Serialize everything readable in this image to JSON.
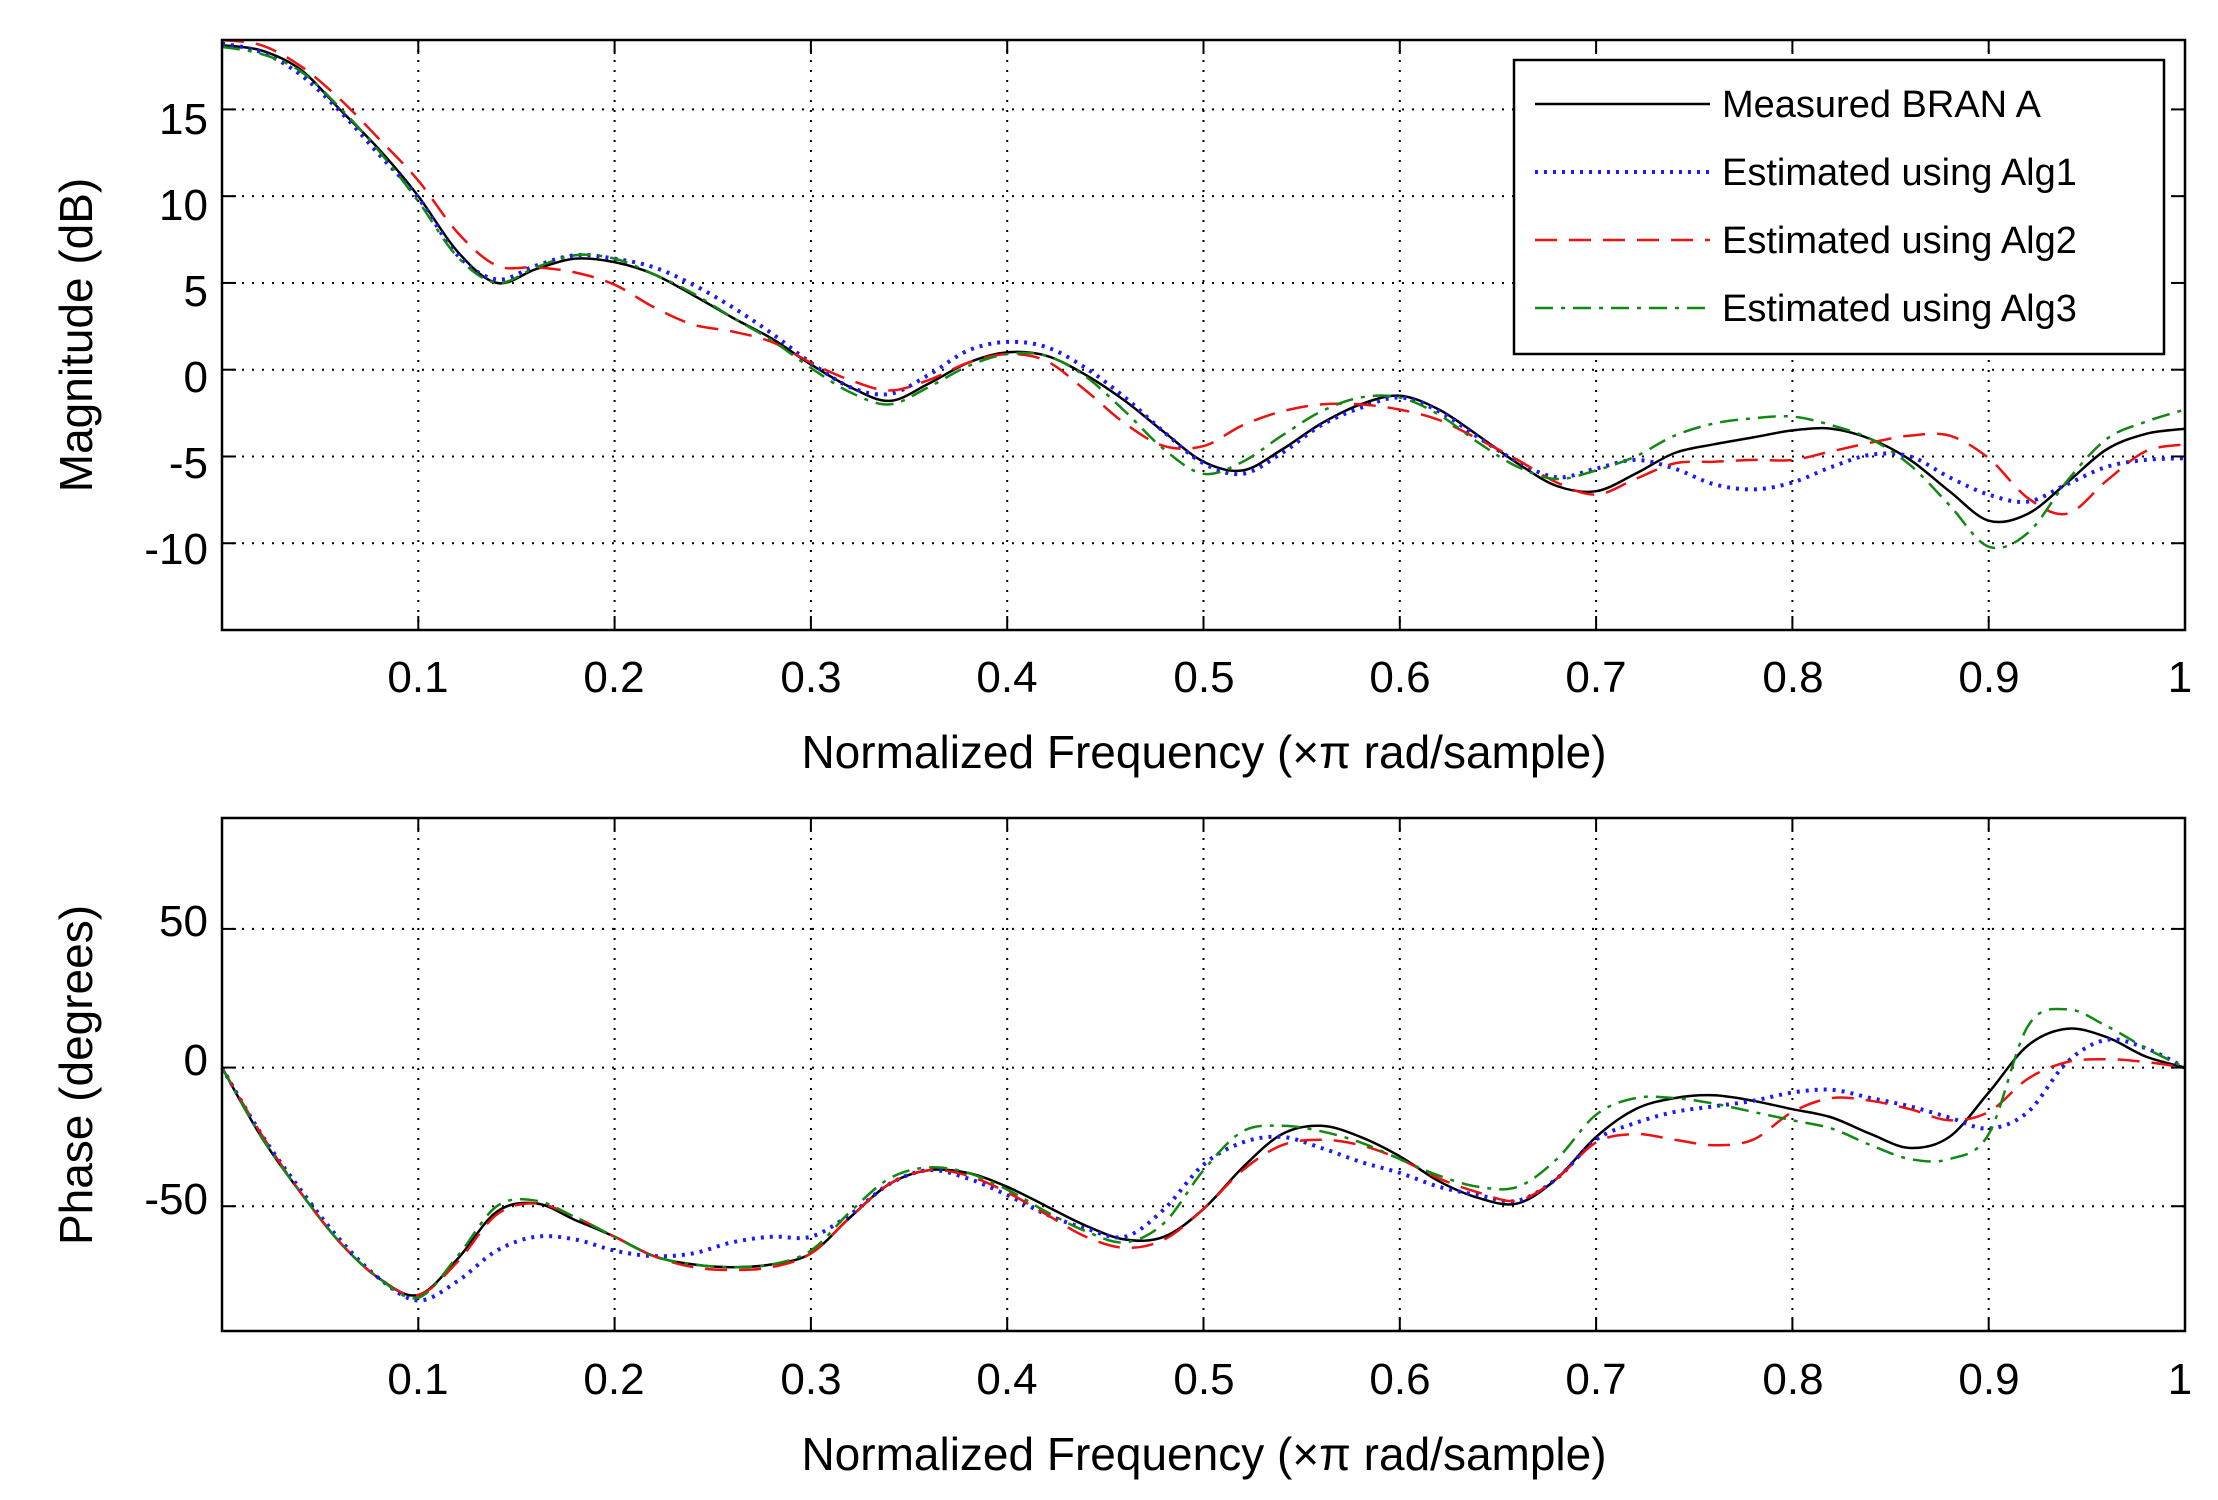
{
  "chart_data": [
    {
      "type": "line",
      "xlabel": "Normalized Frequency  (×π rad/sample)",
      "ylabel": "Magnitude (dB)",
      "xlim": [
        0.0,
        1.0
      ],
      "ylim": [
        -15,
        19
      ],
      "xticks": [
        "0.1",
        "0.2",
        "0.3",
        "0.4",
        "0.5",
        "0.6",
        "0.7",
        "0.8",
        "0.9",
        "1"
      ],
      "xtick_values": [
        0.1,
        0.2,
        0.3,
        0.4,
        0.5,
        0.6,
        0.7,
        0.8,
        0.9,
        1.0
      ],
      "yticks": [
        "15",
        "10",
        "5",
        "0",
        "-5",
        "-10"
      ],
      "ytick_values": [
        15,
        10,
        5,
        0,
        -5,
        -10
      ],
      "grid": true,
      "legend_position": "top-right",
      "series": [
        {
          "name": "Measured BRAN A",
          "color": "#000000",
          "dash": "solid",
          "x": [
            0.0,
            0.02,
            0.04,
            0.06,
            0.08,
            0.1,
            0.12,
            0.14,
            0.16,
            0.18,
            0.2,
            0.22,
            0.24,
            0.26,
            0.28,
            0.3,
            0.32,
            0.34,
            0.36,
            0.38,
            0.4,
            0.42,
            0.44,
            0.46,
            0.48,
            0.5,
            0.52,
            0.54,
            0.56,
            0.58,
            0.6,
            0.62,
            0.64,
            0.66,
            0.68,
            0.7,
            0.72,
            0.74,
            0.76,
            0.78,
            0.8,
            0.82,
            0.84,
            0.86,
            0.88,
            0.9,
            0.92,
            0.94,
            0.96,
            0.98,
            1.0
          ],
          "y": [
            18.7,
            18.4,
            17.3,
            15.0,
            12.7,
            10.0,
            6.8,
            5.0,
            5.8,
            6.4,
            6.2,
            5.5,
            4.3,
            3.0,
            1.8,
            0.3,
            -1.0,
            -1.8,
            -0.8,
            0.4,
            1.0,
            0.8,
            -0.3,
            -1.8,
            -3.6,
            -5.3,
            -5.8,
            -4.6,
            -3.1,
            -2.0,
            -1.5,
            -2.3,
            -3.8,
            -5.4,
            -6.7,
            -7.0,
            -6.0,
            -4.8,
            -4.3,
            -3.9,
            -3.5,
            -3.4,
            -4.0,
            -5.2,
            -7.0,
            -8.7,
            -8.3,
            -6.5,
            -4.6,
            -3.7,
            -3.4
          ]
        },
        {
          "name": "Estimated using Alg1",
          "color": "#1a1aff",
          "dash": "dotted",
          "x": [
            0.0,
            0.02,
            0.04,
            0.06,
            0.08,
            0.1,
            0.12,
            0.14,
            0.16,
            0.18,
            0.2,
            0.22,
            0.24,
            0.26,
            0.28,
            0.3,
            0.32,
            0.34,
            0.36,
            0.38,
            0.4,
            0.42,
            0.44,
            0.46,
            0.48,
            0.5,
            0.52,
            0.54,
            0.56,
            0.58,
            0.6,
            0.62,
            0.64,
            0.66,
            0.68,
            0.7,
            0.72,
            0.74,
            0.76,
            0.78,
            0.8,
            0.82,
            0.84,
            0.86,
            0.88,
            0.9,
            0.92,
            0.94,
            0.96,
            0.98,
            1.0
          ],
          "y": [
            18.8,
            18.3,
            17.0,
            14.9,
            12.4,
            9.9,
            6.6,
            5.2,
            6.0,
            6.6,
            6.4,
            5.9,
            4.9,
            3.6,
            2.1,
            0.4,
            -1.0,
            -1.4,
            -0.3,
            1.1,
            1.6,
            1.3,
            0.1,
            -1.6,
            -3.6,
            -5.4,
            -6.0,
            -4.8,
            -3.2,
            -2.2,
            -1.6,
            -2.4,
            -3.9,
            -5.3,
            -6.2,
            -5.7,
            -5.2,
            -5.7,
            -6.6,
            -6.9,
            -6.5,
            -5.6,
            -4.9,
            -5.0,
            -6.2,
            -7.2,
            -7.6,
            -6.6,
            -5.6,
            -5.2,
            -5.1
          ]
        },
        {
          "name": "Estimated using Alg2",
          "color": "#ee1111",
          "dash": "dashed",
          "x": [
            0.0,
            0.02,
            0.04,
            0.06,
            0.08,
            0.1,
            0.12,
            0.14,
            0.16,
            0.18,
            0.2,
            0.22,
            0.24,
            0.26,
            0.28,
            0.3,
            0.32,
            0.34,
            0.36,
            0.38,
            0.4,
            0.42,
            0.44,
            0.46,
            0.48,
            0.5,
            0.52,
            0.54,
            0.56,
            0.58,
            0.6,
            0.62,
            0.64,
            0.66,
            0.68,
            0.7,
            0.72,
            0.74,
            0.76,
            0.78,
            0.8,
            0.82,
            0.84,
            0.86,
            0.88,
            0.9,
            0.92,
            0.94,
            0.96,
            0.98,
            1.0
          ],
          "y": [
            19.0,
            18.7,
            17.5,
            15.6,
            13.3,
            10.9,
            7.9,
            6.0,
            5.9,
            5.6,
            4.9,
            3.6,
            2.6,
            2.2,
            1.6,
            0.4,
            -0.6,
            -1.2,
            -0.6,
            0.4,
            0.9,
            0.5,
            -1.2,
            -3.1,
            -4.4,
            -4.4,
            -3.2,
            -2.4,
            -2.0,
            -2.0,
            -2.3,
            -2.9,
            -4.0,
            -5.2,
            -6.5,
            -7.2,
            -6.3,
            -5.4,
            -5.3,
            -5.2,
            -5.2,
            -4.7,
            -4.2,
            -3.8,
            -3.8,
            -5.1,
            -7.4,
            -8.3,
            -6.4,
            -4.7,
            -4.3
          ]
        },
        {
          "name": "Estimated using Alg3",
          "color": "#118811",
          "dash": "dashdot",
          "x": [
            0.0,
            0.02,
            0.04,
            0.06,
            0.08,
            0.1,
            0.12,
            0.14,
            0.16,
            0.18,
            0.2,
            0.22,
            0.24,
            0.26,
            0.28,
            0.3,
            0.32,
            0.34,
            0.36,
            0.38,
            0.4,
            0.42,
            0.44,
            0.46,
            0.48,
            0.5,
            0.52,
            0.54,
            0.56,
            0.58,
            0.6,
            0.62,
            0.64,
            0.66,
            0.68,
            0.7,
            0.72,
            0.74,
            0.76,
            0.78,
            0.8,
            0.82,
            0.84,
            0.86,
            0.88,
            0.9,
            0.92,
            0.94,
            0.96,
            0.98,
            1.0
          ],
          "y": [
            18.6,
            18.2,
            17.2,
            15.1,
            12.6,
            9.7,
            6.5,
            5.0,
            5.9,
            6.6,
            6.4,
            5.5,
            4.4,
            3.0,
            1.7,
            0.1,
            -1.3,
            -2.0,
            -1.0,
            0.2,
            0.9,
            0.8,
            -0.4,
            -2.4,
            -4.6,
            -6.0,
            -5.3,
            -3.8,
            -2.4,
            -1.6,
            -1.6,
            -2.6,
            -4.2,
            -5.6,
            -6.3,
            -5.8,
            -5.0,
            -3.8,
            -3.1,
            -2.8,
            -2.7,
            -3.2,
            -4.0,
            -5.5,
            -7.8,
            -10.2,
            -9.4,
            -6.4,
            -4.0,
            -3.0,
            -2.3
          ]
        }
      ]
    },
    {
      "type": "line",
      "xlabel": "Normalized Frequency  (×π rad/sample)",
      "ylabel": "Phase (degrees)",
      "xlim": [
        0.0,
        1.0
      ],
      "ylim": [
        -95,
        90
      ],
      "xticks": [
        "0.1",
        "0.2",
        "0.3",
        "0.4",
        "0.5",
        "0.6",
        "0.7",
        "0.8",
        "0.9",
        "1"
      ],
      "xtick_values": [
        0.1,
        0.2,
        0.3,
        0.4,
        0.5,
        0.6,
        0.7,
        0.8,
        0.9,
        1.0
      ],
      "yticks": [
        "50",
        "0",
        "-50"
      ],
      "ytick_values": [
        50,
        0,
        -50
      ],
      "grid": true,
      "series": [
        {
          "name": "Measured BRAN A",
          "color": "#000000",
          "dash": "solid",
          "x": [
            0.0,
            0.02,
            0.04,
            0.06,
            0.08,
            0.1,
            0.12,
            0.14,
            0.16,
            0.18,
            0.2,
            0.22,
            0.24,
            0.26,
            0.28,
            0.3,
            0.32,
            0.34,
            0.36,
            0.38,
            0.4,
            0.42,
            0.44,
            0.46,
            0.48,
            0.5,
            0.52,
            0.54,
            0.56,
            0.58,
            0.6,
            0.62,
            0.64,
            0.66,
            0.68,
            0.7,
            0.72,
            0.74,
            0.76,
            0.78,
            0.8,
            0.82,
            0.84,
            0.86,
            0.88,
            0.9,
            0.92,
            0.94,
            0.96,
            0.98,
            1.0
          ],
          "y": [
            0,
            -25,
            -45,
            -63,
            -76,
            -82,
            -69,
            -52,
            -49,
            -55,
            -61,
            -68,
            -71,
            -72,
            -71,
            -67,
            -54,
            -42,
            -37,
            -38,
            -43,
            -50,
            -57,
            -62,
            -61,
            -51,
            -36,
            -24,
            -21,
            -25,
            -32,
            -41,
            -47,
            -49,
            -40,
            -25,
            -15,
            -11,
            -10,
            -12,
            -15,
            -18,
            -24,
            -29,
            -25,
            -9,
            8,
            14,
            11,
            4,
            0
          ]
        },
        {
          "name": "Estimated using Alg1",
          "color": "#1a1aff",
          "dash": "dotted",
          "x": [
            0.0,
            0.02,
            0.04,
            0.06,
            0.08,
            0.1,
            0.12,
            0.14,
            0.16,
            0.18,
            0.2,
            0.22,
            0.24,
            0.26,
            0.28,
            0.3,
            0.32,
            0.34,
            0.36,
            0.38,
            0.4,
            0.42,
            0.44,
            0.46,
            0.48,
            0.5,
            0.52,
            0.54,
            0.56,
            0.58,
            0.6,
            0.62,
            0.64,
            0.66,
            0.68,
            0.7,
            0.72,
            0.74,
            0.76,
            0.78,
            0.8,
            0.82,
            0.84,
            0.86,
            0.88,
            0.9,
            0.92,
            0.94,
            0.96,
            0.98,
            1.0
          ],
          "y": [
            0,
            -24,
            -44,
            -62,
            -76,
            -84,
            -77,
            -66,
            -61,
            -62,
            -66,
            -68,
            -67,
            -63,
            -61,
            -61,
            -53,
            -42,
            -37,
            -40,
            -46,
            -53,
            -58,
            -61,
            -51,
            -35,
            -27,
            -25,
            -29,
            -34,
            -38,
            -43,
            -46,
            -48,
            -40,
            -26,
            -20,
            -16,
            -14,
            -12,
            -9,
            -8,
            -11,
            -14,
            -18,
            -22,
            -16,
            2,
            10,
            7,
            0
          ]
        },
        {
          "name": "Estimated using Alg2",
          "color": "#ee1111",
          "dash": "dashed",
          "x": [
            0.0,
            0.02,
            0.04,
            0.06,
            0.08,
            0.1,
            0.12,
            0.14,
            0.16,
            0.18,
            0.2,
            0.22,
            0.24,
            0.26,
            0.28,
            0.3,
            0.32,
            0.34,
            0.36,
            0.38,
            0.4,
            0.42,
            0.44,
            0.46,
            0.48,
            0.5,
            0.52,
            0.54,
            0.56,
            0.58,
            0.6,
            0.62,
            0.64,
            0.66,
            0.68,
            0.7,
            0.72,
            0.74,
            0.76,
            0.78,
            0.8,
            0.82,
            0.84,
            0.86,
            0.88,
            0.9,
            0.92,
            0.94,
            0.96,
            0.98,
            1.0
          ],
          "y": [
            0,
            -24,
            -45,
            -63,
            -76,
            -82,
            -70,
            -53,
            -49,
            -54,
            -61,
            -68,
            -72,
            -73,
            -72,
            -67,
            -54,
            -42,
            -37,
            -39,
            -45,
            -53,
            -61,
            -65,
            -62,
            -51,
            -37,
            -28,
            -26,
            -28,
            -33,
            -40,
            -45,
            -48,
            -40,
            -27,
            -24,
            -26,
            -28,
            -26,
            -16,
            -11,
            -12,
            -15,
            -19,
            -16,
            -4,
            2,
            3,
            2,
            0
          ]
        },
        {
          "name": "Estimated using Alg3",
          "color": "#118811",
          "dash": "dashdot",
          "x": [
            0.0,
            0.02,
            0.04,
            0.06,
            0.08,
            0.1,
            0.12,
            0.14,
            0.16,
            0.18,
            0.2,
            0.22,
            0.24,
            0.26,
            0.28,
            0.3,
            0.32,
            0.34,
            0.36,
            0.38,
            0.4,
            0.42,
            0.44,
            0.46,
            0.48,
            0.5,
            0.52,
            0.54,
            0.56,
            0.58,
            0.6,
            0.62,
            0.64,
            0.66,
            0.68,
            0.7,
            0.72,
            0.74,
            0.76,
            0.78,
            0.8,
            0.82,
            0.84,
            0.86,
            0.88,
            0.9,
            0.92,
            0.94,
            0.96,
            0.98,
            1.0
          ],
          "y": [
            0,
            -25,
            -45,
            -63,
            -76,
            -83,
            -68,
            -50,
            -48,
            -54,
            -61,
            -68,
            -71,
            -72,
            -71,
            -66,
            -52,
            -40,
            -36,
            -38,
            -44,
            -52,
            -59,
            -63,
            -56,
            -37,
            -23,
            -21,
            -23,
            -27,
            -33,
            -39,
            -43,
            -43,
            -33,
            -17,
            -11,
            -11,
            -13,
            -16,
            -19,
            -22,
            -28,
            -33,
            -33,
            -24,
            15,
            21,
            15,
            7,
            0
          ]
        }
      ]
    }
  ]
}
